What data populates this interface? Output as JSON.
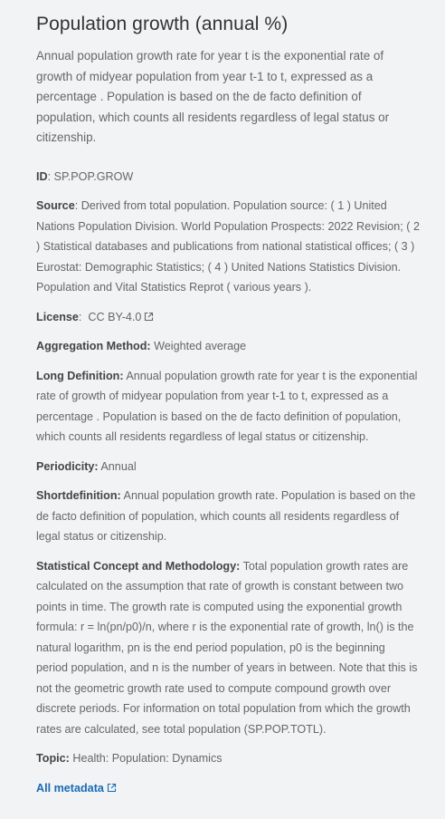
{
  "title": "Population growth (annual %)",
  "summary": "Annual population growth rate for year t is the exponential rate of growth of midyear population from year t-1 to t, expressed as a percentage . Population is based on the de facto definition of population, which counts all residents regardless of legal status or citizenship.",
  "fields": {
    "id": {
      "key": "ID",
      "value": "SP.POP.GROW"
    },
    "source": {
      "key": "Source",
      "value": "Derived from total population. Population source: ( 1 ) United Nations Population Division. World Population Prospects: 2022 Revision; ( 2 ) Statistical databases and publications from national statistical offices; ( 3 ) Eurostat: Demographic Statistics; ( 4 ) United Nations Statistics Division. Population and Vital Statistics Reprot ( various years )."
    },
    "license": {
      "key": "License",
      "value": "CC BY-4.0"
    },
    "aggregation": {
      "key": "Aggregation Method:",
      "value": "Weighted average"
    },
    "long_definition": {
      "key": "Long Definition:",
      "value": "Annual population growth rate for year t is the exponential rate of growth of midyear population from year t-1 to t, expressed as a percentage . Population is based on the de facto definition of population, which counts all residents regardless of legal status or citizenship."
    },
    "periodicity": {
      "key": "Periodicity:",
      "value": "Annual"
    },
    "shortdefinition": {
      "key": "Shortdefinition:",
      "value": "Annual population growth rate. Population is based on the de facto definition of population, which counts all residents regardless of legal status or citizenship."
    },
    "statistical_concept": {
      "key": "Statistical Concept and Methodology:",
      "value": "Total population growth rates are calculated on the assumption that rate of growth is constant between two points in time. The growth rate is computed using the exponential growth formula: r = ln(pn/p0)/n, where r is the exponential rate of growth, ln() is the natural logarithm, pn is the end period population, p0 is the beginning period population, and n is the number of years in between. Note that this is not the geometric growth rate used to compute compound growth over discrete periods. For information on total population from which the growth rates are calculated, see total population (SP.POP.TOTL)."
    },
    "topic": {
      "key": "Topic:",
      "value": "Health: Population: Dynamics"
    }
  },
  "all_metadata_link": "All metadata",
  "icons": {
    "external": "external-link-icon"
  },
  "colors": {
    "link": "#1a6bb5",
    "text": "#666666",
    "background": "#f2f3f4"
  }
}
